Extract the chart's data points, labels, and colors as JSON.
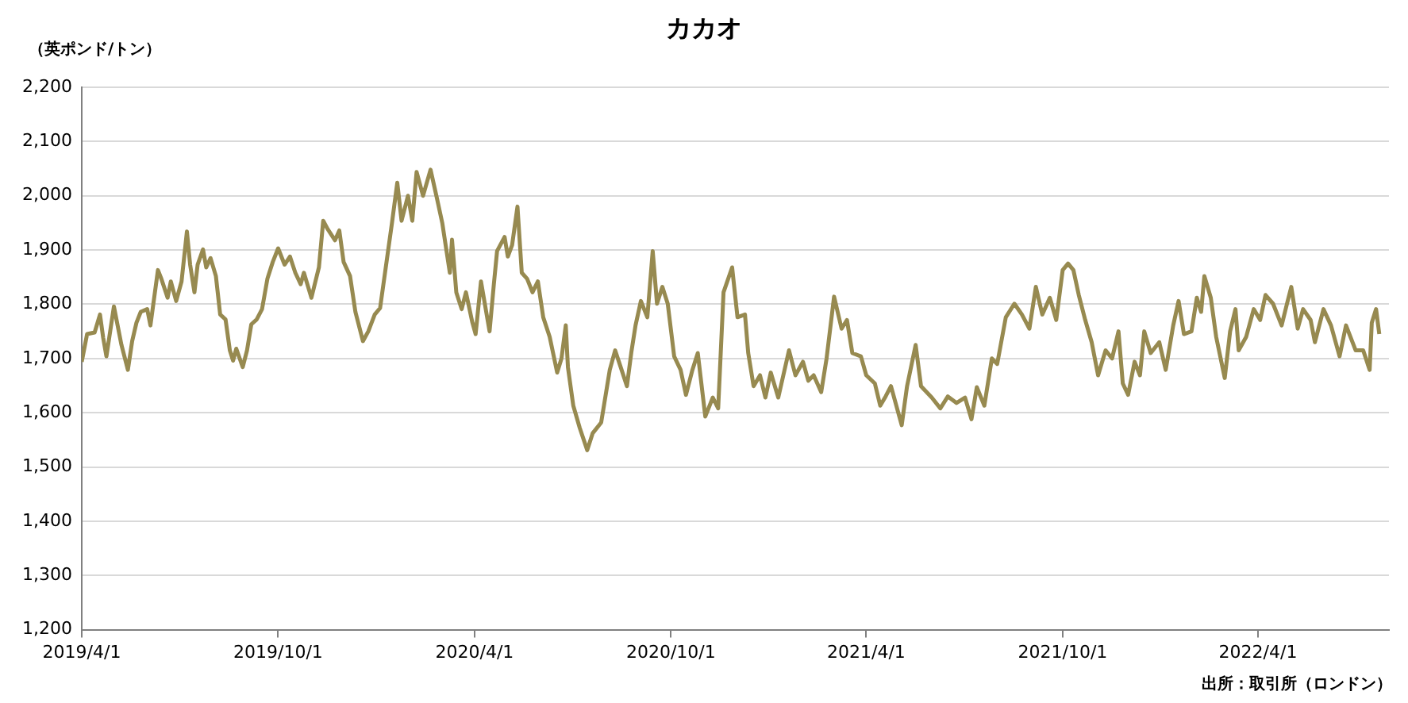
{
  "chart_data": {
    "type": "line",
    "title": "カカオ",
    "ylabel": "（英ポンド/トン）",
    "annotations": [
      "出所：取引所（ロンドン）"
    ],
    "xlim": [
      "2019-04-01",
      "2022-08-01"
    ],
    "xticks": [
      {
        "value": "2019-04-01",
        "label": "2019/4/1"
      },
      {
        "value": "2019-10-01",
        "label": "2019/10/1"
      },
      {
        "value": "2020-04-01",
        "label": "2020/4/1"
      },
      {
        "value": "2020-10-01",
        "label": "2020/10/1"
      },
      {
        "value": "2021-04-01",
        "label": "2021/4/1"
      },
      {
        "value": "2021-10-01",
        "label": "2021/10/1"
      },
      {
        "value": "2022-04-01",
        "label": "2022/4/1"
      }
    ],
    "ylim": [
      1200,
      2200
    ],
    "yticks": [
      {
        "value": 1200,
        "label": "1,200"
      },
      {
        "value": 1300,
        "label": "1,300"
      },
      {
        "value": 1400,
        "label": "1,400"
      },
      {
        "value": 1500,
        "label": "1,500"
      },
      {
        "value": 1600,
        "label": "1,600"
      },
      {
        "value": 1700,
        "label": "1,700"
      },
      {
        "value": 1800,
        "label": "1,800"
      },
      {
        "value": 1900,
        "label": "1,900"
      },
      {
        "value": 2000,
        "label": "2,000"
      },
      {
        "value": 2100,
        "label": "2,100"
      },
      {
        "value": 2200,
        "label": "2,200"
      }
    ],
    "grid": "y",
    "legend": false,
    "marker": "none",
    "line_style": "solid",
    "x": [
      "2019-04-01",
      "2019-04-06",
      "2019-04-13",
      "2019-04-18",
      "2019-04-21",
      "2019-04-24",
      "2019-05-01",
      "2019-05-08",
      "2019-05-14",
      "2019-05-18",
      "2019-05-22",
      "2019-05-26",
      "2019-06-01",
      "2019-06-04",
      "2019-06-11",
      "2019-06-14",
      "2019-06-20",
      "2019-06-23",
      "2019-06-28",
      "2019-07-03",
      "2019-07-08",
      "2019-07-11",
      "2019-07-15",
      "2019-07-18",
      "2019-07-23",
      "2019-07-26",
      "2019-07-30",
      "2019-08-04",
      "2019-08-08",
      "2019-08-13",
      "2019-08-17",
      "2019-08-20",
      "2019-08-23",
      "2019-08-29",
      "2019-09-02",
      "2019-09-06",
      "2019-09-11",
      "2019-09-16",
      "2019-09-21",
      "2019-09-26",
      "2019-10-01",
      "2019-10-07",
      "2019-10-12",
      "2019-10-17",
      "2019-10-22",
      "2019-10-25",
      "2019-11-01",
      "2019-11-08",
      "2019-11-12",
      "2019-11-16",
      "2019-11-23",
      "2019-11-27",
      "2019-12-01",
      "2019-12-07",
      "2019-12-12",
      "2019-12-19",
      "2019-12-24",
      "2019-12-30",
      "2020-01-04",
      "2020-01-10",
      "2020-01-15",
      "2020-01-20",
      "2020-01-24",
      "2020-01-30",
      "2020-02-03",
      "2020-02-07",
      "2020-02-13",
      "2020-02-20",
      "2020-02-26",
      "2020-03-02",
      "2020-03-09",
      "2020-03-11",
      "2020-03-15",
      "2020-03-20",
      "2020-03-24",
      "2020-03-30",
      "2020-04-02",
      "2020-04-07",
      "2020-04-15",
      "2020-04-19",
      "2020-04-22",
      "2020-04-29",
      "2020-05-02",
      "2020-05-06",
      "2020-05-11",
      "2020-05-15",
      "2020-05-20",
      "2020-05-25",
      "2020-05-30",
      "2020-06-04",
      "2020-06-10",
      "2020-06-17",
      "2020-06-21",
      "2020-06-25",
      "2020-06-27",
      "2020-07-02",
      "2020-07-08",
      "2020-07-15",
      "2020-07-20",
      "2020-07-28",
      "2020-08-05",
      "2020-08-10",
      "2020-08-16",
      "2020-08-21",
      "2020-08-25",
      "2020-08-29",
      "2020-09-03",
      "2020-09-09",
      "2020-09-14",
      "2020-09-18",
      "2020-09-23",
      "2020-09-28",
      "2020-10-04",
      "2020-10-10",
      "2020-10-15",
      "2020-10-21",
      "2020-10-26",
      "2020-11-02",
      "2020-11-09",
      "2020-11-14",
      "2020-11-19",
      "2020-11-27",
      "2020-12-02",
      "2020-12-09",
      "2020-12-12",
      "2020-12-17",
      "2020-12-23",
      "2020-12-28",
      "2021-01-02",
      "2021-01-09",
      "2021-01-19",
      "2021-01-25",
      "2021-02-01",
      "2021-02-06",
      "2021-02-11",
      "2021-02-18",
      "2021-02-23",
      "2021-03-02",
      "2021-03-09",
      "2021-03-14",
      "2021-03-19",
      "2021-03-27",
      "2021-04-01",
      "2021-04-09",
      "2021-04-14",
      "2021-04-19",
      "2021-04-24",
      "2021-05-04",
      "2021-05-09",
      "2021-05-17",
      "2021-05-22",
      "2021-06-01",
      "2021-06-09",
      "2021-06-16",
      "2021-06-24",
      "2021-07-02",
      "2021-07-08",
      "2021-07-13",
      "2021-07-20",
      "2021-07-27",
      "2021-08-01",
      "2021-08-09",
      "2021-08-17",
      "2021-08-24",
      "2021-08-31",
      "2021-09-06",
      "2021-09-12",
      "2021-09-19",
      "2021-09-25",
      "2021-10-01",
      "2021-10-06",
      "2021-10-11",
      "2021-10-16",
      "2021-10-22",
      "2021-10-28",
      "2021-11-03",
      "2021-11-10",
      "2021-11-16",
      "2021-11-22",
      "2021-11-26",
      "2021-12-01",
      "2021-12-07",
      "2021-12-12",
      "2021-12-16",
      "2021-12-22",
      "2021-12-30",
      "2022-01-05",
      "2022-01-12",
      "2022-01-17",
      "2022-01-22",
      "2022-01-29",
      "2022-02-03",
      "2022-02-07",
      "2022-02-10",
      "2022-02-16",
      "2022-02-21",
      "2022-03-01",
      "2022-03-06",
      "2022-03-11",
      "2022-03-14",
      "2022-03-21",
      "2022-03-28",
      "2022-04-03",
      "2022-04-08",
      "2022-04-15",
      "2022-04-23",
      "2022-04-28",
      "2022-05-02",
      "2022-05-08",
      "2022-05-13",
      "2022-05-20",
      "2022-05-24",
      "2022-06-01",
      "2022-06-08",
      "2022-06-16",
      "2022-06-22",
      "2022-07-01",
      "2022-07-08",
      "2022-07-14",
      "2022-07-16",
      "2022-07-20",
      "2022-07-23"
    ],
    "series": [
      {
        "color": "#978a50",
        "values": [
          1694,
          1745,
          1748,
          1781,
          1738,
          1704,
          1796,
          1725,
          1679,
          1732,
          1766,
          1786,
          1791,
          1761,
          1863,
          1848,
          1812,
          1842,
          1806,
          1842,
          1934,
          1873,
          1822,
          1873,
          1901,
          1868,
          1885,
          1852,
          1781,
          1772,
          1715,
          1696,
          1718,
          1684,
          1715,
          1763,
          1772,
          1791,
          1847,
          1878,
          1903,
          1873,
          1888,
          1858,
          1837,
          1858,
          1812,
          1868,
          1954,
          1939,
          1918,
          1936,
          1878,
          1852,
          1786,
          1732,
          1750,
          1781,
          1793,
          1878,
          1949,
          2024,
          1954,
          2000,
          1954,
          2044,
          2000,
          2048,
          1995,
          1949,
          1858,
          1919,
          1822,
          1791,
          1822,
          1766,
          1745,
          1842,
          1750,
          1837,
          1898,
          1924,
          1888,
          1909,
          1980,
          1858,
          1847,
          1822,
          1842,
          1776,
          1740,
          1674,
          1700,
          1761,
          1684,
          1613,
          1572,
          1531,
          1562,
          1582,
          1679,
          1715,
          1679,
          1649,
          1710,
          1761,
          1806,
          1776,
          1898,
          1801,
          1832,
          1801,
          1704,
          1679,
          1633,
          1679,
          1710,
          1593,
          1628,
          1608,
          1822,
          1868,
          1776,
          1781,
          1710,
          1649,
          1669,
          1628,
          1674,
          1628,
          1715,
          1669,
          1694,
          1659,
          1669,
          1638,
          1700,
          1814,
          1755,
          1771,
          1710,
          1704,
          1669,
          1654,
          1613,
          1630,
          1649,
          1577,
          1649,
          1725,
          1649,
          1628,
          1608,
          1630,
          1618,
          1628,
          1588,
          1647,
          1613,
          1700,
          1690,
          1776,
          1801,
          1781,
          1755,
          1832,
          1781,
          1812,
          1771,
          1863,
          1875,
          1863,
          1817,
          1771,
          1730,
          1669,
          1715,
          1700,
          1750,
          1654,
          1633,
          1694,
          1669,
          1750,
          1710,
          1730,
          1679,
          1761,
          1806,
          1745,
          1750,
          1812,
          1786,
          1852,
          1812,
          1740,
          1664,
          1750,
          1791,
          1715,
          1740,
          1791,
          1771,
          1817,
          1801,
          1761,
          1801,
          1832,
          1755,
          1791,
          1771,
          1730,
          1791,
          1761,
          1704,
          1761,
          1715,
          1715,
          1679,
          1766,
          1791,
          1745
        ]
      }
    ]
  }
}
